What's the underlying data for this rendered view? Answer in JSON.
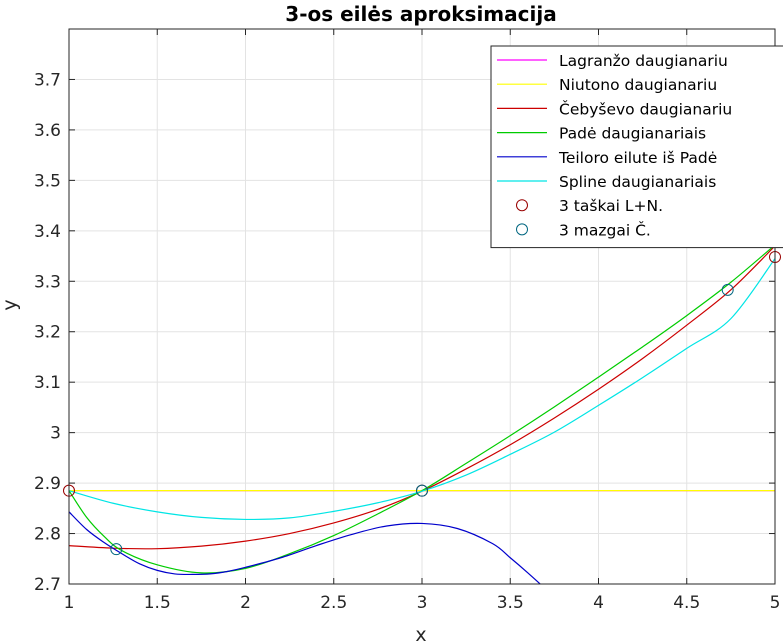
{
  "chart_data": {
    "type": "line",
    "title": "3-os eilės aproksimacija",
    "xlabel": "x",
    "ylabel": "y",
    "xlim": [
      1,
      5
    ],
    "ylim": [
      2.7,
      3.8
    ],
    "xticks": [
      1,
      1.5,
      2,
      2.5,
      3,
      3.5,
      4,
      4.5,
      5
    ],
    "yticks": [
      2.7,
      2.8,
      2.9,
      3,
      3.1,
      3.2,
      3.3,
      3.4,
      3.5,
      3.6,
      3.7
    ],
    "grid": true,
    "legend_position": "top-right",
    "series": [
      {
        "name": "Lagranžo daugianariu",
        "color": "#ff00ff",
        "x": [
          1,
          3,
          5
        ],
        "y": [
          2.885,
          2.885,
          2.885
        ]
      },
      {
        "name": "Niutono daugianariu",
        "color": "#ffff00",
        "x": [
          1,
          3,
          5
        ],
        "y": [
          2.885,
          2.885,
          2.885
        ]
      },
      {
        "name": "Čebyševo daugianariu",
        "color": "#cc0000",
        "x": [
          1,
          1.25,
          1.5,
          1.75,
          2,
          2.25,
          2.5,
          2.75,
          3,
          3.25,
          3.5,
          3.75,
          4,
          4.25,
          4.5,
          4.75,
          5
        ],
        "y": [
          2.776,
          2.771,
          2.77,
          2.775,
          2.785,
          2.8,
          2.821,
          2.848,
          2.884,
          2.928,
          2.976,
          3.029,
          3.086,
          3.147,
          3.213,
          3.283,
          3.37
        ]
      },
      {
        "name": "Padė daugianariais",
        "color": "#00cc00",
        "x": [
          1,
          1.1,
          1.2,
          1.3,
          1.5,
          1.75,
          2,
          2.25,
          2.5,
          2.75,
          3,
          3.25,
          3.5,
          3.75,
          4,
          4.25,
          4.5,
          4.75,
          5
        ],
        "y": [
          2.885,
          2.832,
          2.794,
          2.766,
          2.738,
          2.722,
          2.731,
          2.76,
          2.796,
          2.839,
          2.885,
          2.939,
          2.994,
          3.051,
          3.11,
          3.17,
          3.232,
          3.298,
          3.372
        ]
      },
      {
        "name": "Teiloro eilute iš Padė",
        "color": "#0000cc",
        "x": [
          1,
          1.1,
          1.2,
          1.3,
          1.4,
          1.5,
          1.6,
          1.7,
          1.8,
          1.9,
          2,
          2.2,
          2.4,
          2.6,
          2.8,
          3,
          3.2,
          3.4,
          3.5,
          3.6,
          3.7,
          3.72
        ],
        "y": [
          2.843,
          2.808,
          2.782,
          2.76,
          2.74,
          2.727,
          2.72,
          2.719,
          2.72,
          2.725,
          2.733,
          2.752,
          2.776,
          2.798,
          2.815,
          2.82,
          2.81,
          2.78,
          2.752,
          2.722,
          2.69,
          2.682
        ]
      },
      {
        "name": "Spline daugianariais",
        "color": "#00e5e5",
        "x": [
          1,
          1.25,
          1.5,
          1.75,
          2,
          2.25,
          2.5,
          2.75,
          3,
          3.25,
          3.5,
          3.75,
          4,
          4.25,
          4.5,
          4.75,
          5
        ],
        "y": [
          2.885,
          2.86,
          2.843,
          2.832,
          2.828,
          2.831,
          2.844,
          2.861,
          2.884,
          2.916,
          2.957,
          3.001,
          3.054,
          3.109,
          3.167,
          3.226,
          3.345
        ]
      }
    ],
    "marker_series": [
      {
        "name": "3 taškai L+N.",
        "color": "#990000",
        "x": [
          1,
          3,
          5
        ],
        "y": [
          2.885,
          2.885,
          3.348
        ]
      },
      {
        "name": "3 mazgai Č.",
        "color": "#006680",
        "x": [
          1.268,
          3,
          4.732
        ],
        "y": [
          2.769,
          2.885,
          3.283
        ]
      }
    ]
  }
}
